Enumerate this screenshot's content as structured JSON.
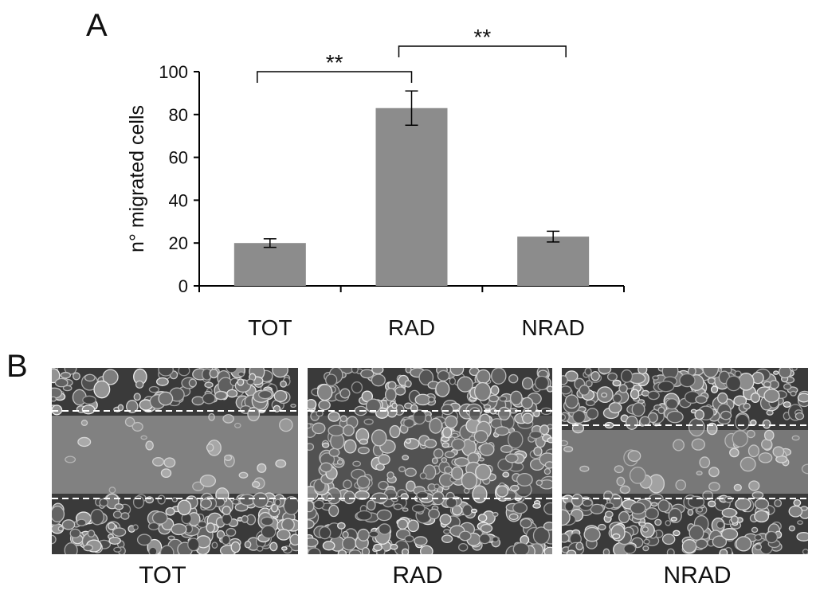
{
  "panels": {
    "a_label": "A",
    "b_label": "B"
  },
  "chart_data": {
    "type": "bar",
    "categories": [
      "TOT",
      "RAD",
      "NRAD"
    ],
    "values": [
      20,
      83,
      23
    ],
    "errors": [
      2,
      8,
      2.5
    ],
    "ylabel": "n° migrated  cells",
    "ylim": [
      0,
      100
    ],
    "yticks": [
      0,
      20,
      40,
      60,
      80,
      100
    ],
    "bar_color": "#8c8c8c",
    "significance": [
      {
        "from": "TOT",
        "to": "RAD",
        "label": "**"
      },
      {
        "from": "RAD",
        "to": "NRAD",
        "label": "**"
      }
    ]
  },
  "micrographs": [
    {
      "label": "TOT"
    },
    {
      "label": "RAD"
    },
    {
      "label": "NRAD"
    }
  ]
}
